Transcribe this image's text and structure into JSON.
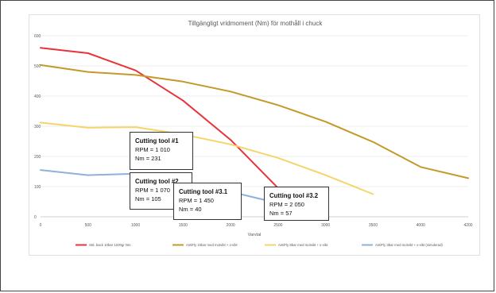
{
  "chart_data": {
    "type": "line",
    "title": "Tillgängligt vridmoment (Nm) för mothåll i chuck",
    "xlabel": "Varvtal",
    "ylabel": "",
    "x_ticks": [
      "0",
      "500",
      "1000",
      "1500",
      "2000",
      "2500",
      "3000",
      "3500",
      "4000",
      "4200"
    ],
    "ylim": [
      0,
      600
    ],
    "y_ticks": [
      0,
      100,
      200,
      300,
      400,
      500,
      600
    ],
    "grid": true,
    "legend_position": "bottom",
    "series": [
      {
        "name": "Std. back 10bar 1200gr Nm",
        "color": "#e8333a",
        "points": [
          [
            0,
            560
          ],
          [
            500,
            542
          ],
          [
            1000,
            485
          ],
          [
            1500,
            385
          ],
          [
            2000,
            255
          ],
          [
            2500,
            95
          ]
        ]
      },
      {
        "name": "AntiFly 10bar med motvikt + x-vikt",
        "color": "#c39a2a",
        "points": [
          [
            0,
            503
          ],
          [
            500,
            480
          ],
          [
            1000,
            470
          ],
          [
            1500,
            448
          ],
          [
            2000,
            415
          ],
          [
            2500,
            370
          ],
          [
            3000,
            315
          ],
          [
            3500,
            248
          ],
          [
            4000,
            165
          ],
          [
            4200,
            128
          ]
        ]
      },
      {
        "name": "AntiFly 8bar med motvikt + x-vikt",
        "color": "#f7d46a",
        "points": [
          [
            0,
            312
          ],
          [
            500,
            295
          ],
          [
            1000,
            297
          ],
          [
            1500,
            273
          ],
          [
            2000,
            240
          ],
          [
            2500,
            195
          ],
          [
            3000,
            138
          ],
          [
            3500,
            75
          ]
        ]
      },
      {
        "name": "AntiFly 3bar med motvikt + x-vikt (simulerad)",
        "color": "#8fb0dc",
        "points": [
          [
            0,
            155
          ],
          [
            500,
            138
          ],
          [
            1000,
            143
          ],
          [
            1500,
            118
          ],
          [
            2000,
            83
          ],
          [
            2500,
            45
          ]
        ]
      }
    ],
    "annotations": [
      {
        "title": "Cutting tool #1",
        "lines": [
          "RPM = 1 010",
          "Nm = 231"
        ]
      },
      {
        "title": "Cutting tool #2",
        "lines": [
          "RPM = 1 070",
          "Nm = 105"
        ]
      },
      {
        "title": "Cutting tool #3.1",
        "lines": [
          "RPM = 1 450",
          "Nm = 40"
        ]
      },
      {
        "title": "Cutting tool #3.2",
        "lines": [
          "RPM = 2 050",
          "Nm = 57"
        ]
      }
    ]
  }
}
